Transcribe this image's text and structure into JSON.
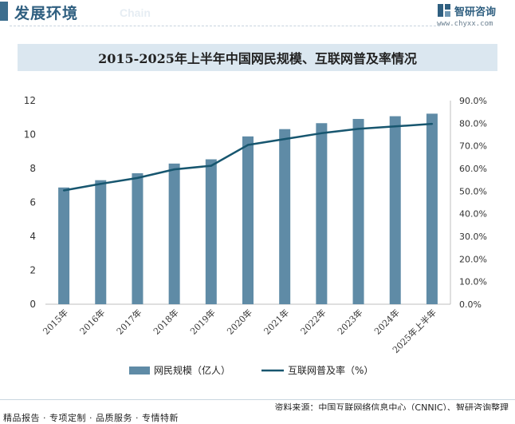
{
  "header": {
    "section_title": "发展环境",
    "section_subtitle": "Chain",
    "brand_name": "智研咨询",
    "brand_url": "www.chyxx.com"
  },
  "chart_data": {
    "type": "bar",
    "title": "2015-2025年上半年中国网民规模、互联网普及率情况",
    "categories": [
      "2015年",
      "2016年",
      "2017年",
      "2018年",
      "2019年",
      "2020年",
      "2021年",
      "2022年",
      "2023年",
      "2024年",
      "2025年上半年"
    ],
    "series": [
      {
        "name": "网民规模（亿人）",
        "type": "bar",
        "axis": "left",
        "color": "#5f8ba6",
        "values": [
          6.88,
          7.31,
          7.72,
          8.29,
          8.54,
          9.89,
          10.32,
          10.67,
          10.92,
          11.08,
          11.23
        ]
      },
      {
        "name": "互联网普及率（%）",
        "type": "line",
        "axis": "right",
        "color": "#17566f",
        "values": [
          50.3,
          53.2,
          55.8,
          59.6,
          61.2,
          70.4,
          73.0,
          75.6,
          77.5,
          78.6,
          79.7
        ]
      }
    ],
    "y_left": {
      "min": 0,
      "max": 12,
      "ticks": [
        "0",
        "2",
        "4",
        "6",
        "8",
        "10",
        "12"
      ]
    },
    "y_right": {
      "min": 0,
      "max": 90,
      "ticks": [
        "0.0%",
        "10.0%",
        "20.0%",
        "30.0%",
        "40.0%",
        "50.0%",
        "60.0%",
        "70.0%",
        "80.0%",
        "90.0%"
      ]
    },
    "grid": false,
    "legend_position": "bottom"
  },
  "footer": {
    "source": "资料来源：中国互联网络信息中心（CNNIC）、智研咨询整理",
    "slogan": "精品报告 · 专项定制 · 品质服务 · 专情特新"
  }
}
